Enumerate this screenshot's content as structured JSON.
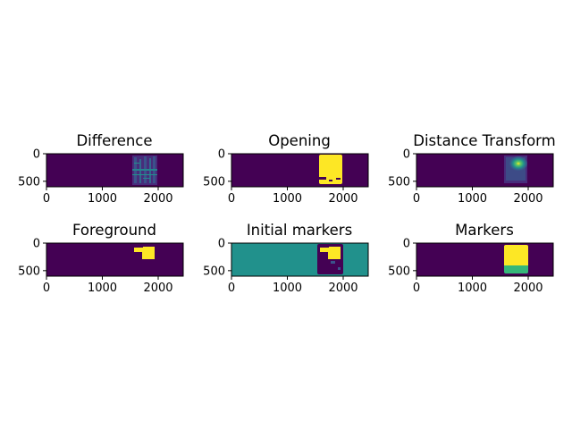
{
  "colors": {
    "viridis_low": "#440154",
    "viridis_mid": "#21918c",
    "viridis_high": "#fde725",
    "viridis_green": "#35b779",
    "viridis_dark_blue": "#3b528b",
    "spines": "#000000"
  },
  "chart_data": [
    {
      "type": "heatmap",
      "title": "Difference",
      "xticks": [
        "0",
        "1000",
        "2000"
      ],
      "yticks": [
        "0",
        "500"
      ],
      "xlim": [
        0,
        2448
      ],
      "ylim": [
        600,
        0
      ]
    },
    {
      "type": "heatmap",
      "title": "Opening",
      "xticks": [
        "0",
        "1000",
        "2000"
      ],
      "yticks": [
        "0",
        "500"
      ],
      "xlim": [
        0,
        2448
      ],
      "ylim": [
        600,
        0
      ]
    },
    {
      "type": "heatmap",
      "title": "Distance Transform",
      "xticks": [
        "0",
        "1000",
        "2000"
      ],
      "yticks": [
        "0",
        "500"
      ],
      "xlim": [
        0,
        2448
      ],
      "ylim": [
        600,
        0
      ]
    },
    {
      "type": "heatmap",
      "title": "Foreground",
      "xticks": [
        "0",
        "1000",
        "2000"
      ],
      "yticks": [
        "0",
        "500"
      ],
      "xlim": [
        0,
        2448
      ],
      "ylim": [
        600,
        0
      ]
    },
    {
      "type": "heatmap",
      "title": "Initial markers",
      "xticks": [
        "0",
        "1000",
        "2000"
      ],
      "yticks": [
        "0",
        "500"
      ],
      "xlim": [
        0,
        2448
      ],
      "ylim": [
        600,
        0
      ]
    },
    {
      "type": "heatmap",
      "title": "Markers",
      "xticks": [
        "0",
        "1000",
        "2000"
      ],
      "yticks": [
        "0",
        "500"
      ],
      "xlim": [
        0,
        2448
      ],
      "ylim": [
        600,
        0
      ]
    }
  ]
}
